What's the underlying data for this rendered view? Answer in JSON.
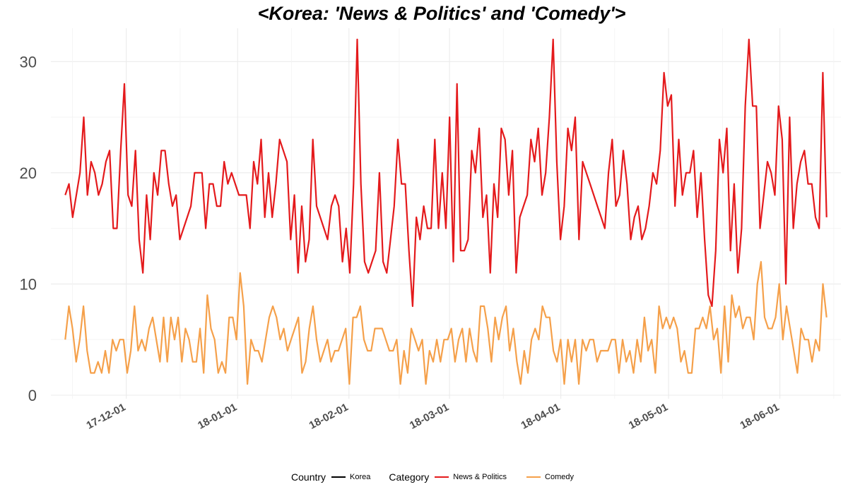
{
  "chart_data": {
    "type": "line",
    "title": "<Korea: 'News & Politics' and 'Comedy'>",
    "xlabel": "",
    "ylabel": "",
    "x_start": "2017-11-14",
    "x_end": "2018-06-14",
    "xlim": [
      "2017-11-10",
      "2018-06-18"
    ],
    "ylim": [
      0,
      33
    ],
    "yticks": [
      0,
      10,
      20,
      30
    ],
    "xtick_labels": [
      {
        "date": "2017-12-01",
        "label": "17-12-01"
      },
      {
        "date": "2018-01-01",
        "label": "18-01-01"
      },
      {
        "date": "2018-02-01",
        "label": "18-02-01"
      },
      {
        "date": "2018-03-01",
        "label": "18-03-01"
      },
      {
        "date": "2018-04-01",
        "label": "18-04-01"
      },
      {
        "date": "2018-05-01",
        "label": "18-05-01"
      },
      {
        "date": "2018-06-01",
        "label": "18-06-01"
      }
    ],
    "grid": true,
    "legend_position": "bottom",
    "series": [
      {
        "name": "News & Politics",
        "color": "#e41a1c",
        "values": [
          18,
          19,
          16,
          18,
          20,
          25,
          18,
          21,
          20,
          18,
          19,
          21,
          22,
          15,
          15,
          22,
          28,
          18,
          17,
          22,
          14,
          11,
          18,
          14,
          20,
          18,
          22,
          22,
          19,
          17,
          18,
          14,
          15,
          16,
          17,
          20,
          20,
          20,
          15,
          19,
          19,
          17,
          17,
          21,
          19,
          20,
          19,
          18,
          18,
          18,
          15,
          21,
          19,
          23,
          16,
          20,
          16,
          19,
          23,
          22,
          21,
          14,
          18,
          11,
          17,
          12,
          14,
          23,
          17,
          16,
          15,
          14,
          17,
          18,
          17,
          12,
          15,
          11,
          19,
          32,
          19,
          12,
          11,
          12,
          13,
          20,
          12,
          11,
          14,
          17,
          23,
          19,
          19,
          13,
          8,
          16,
          14,
          17,
          15,
          15,
          23,
          15,
          20,
          15,
          25,
          12,
          28,
          13,
          13,
          14,
          22,
          20,
          24,
          16,
          18,
          11,
          19,
          16,
          24,
          23,
          18,
          22,
          11,
          16,
          17,
          18,
          23,
          21,
          24,
          18,
          20,
          25,
          32,
          21,
          14,
          17,
          24,
          22,
          25,
          14,
          21,
          20,
          19,
          18,
          17,
          16,
          15,
          20,
          23,
          17,
          18,
          22,
          19,
          14,
          16,
          17,
          14,
          15,
          17,
          20,
          19,
          22,
          29,
          26,
          27,
          17,
          23,
          18,
          20,
          20,
          22,
          16,
          20,
          14,
          9,
          8,
          13,
          23,
          20,
          24,
          13,
          19,
          11,
          15,
          26,
          32,
          26,
          26,
          15,
          18,
          21,
          20,
          18,
          26,
          23,
          10,
          25,
          15,
          19,
          21,
          22,
          19,
          19,
          16,
          15,
          29,
          16
        ]
      },
      {
        "name": "Comedy",
        "color": "#f5a04a",
        "values": [
          5,
          8,
          6,
          3,
          5,
          8,
          4,
          2,
          2,
          3,
          2,
          4,
          2,
          5,
          4,
          5,
          5,
          2,
          4,
          8,
          4,
          5,
          4,
          6,
          7,
          5,
          3,
          7,
          3,
          7,
          5,
          7,
          3,
          6,
          5,
          3,
          3,
          6,
          2,
          9,
          6,
          5,
          2,
          3,
          2,
          7,
          7,
          5,
          11,
          8,
          1,
          5,
          4,
          4,
          3,
          5,
          7,
          8,
          7,
          5,
          6,
          4,
          5,
          6,
          7,
          2,
          3,
          6,
          8,
          5,
          3,
          4,
          5,
          3,
          4,
          4,
          5,
          6,
          1,
          7,
          7,
          8,
          5,
          4,
          4,
          6,
          6,
          6,
          5,
          4,
          4,
          5,
          1,
          4,
          2,
          6,
          5,
          4,
          5,
          1,
          4,
          3,
          5,
          3,
          5,
          5,
          6,
          3,
          5,
          6,
          3,
          6,
          4,
          3,
          8,
          8,
          6,
          3,
          7,
          5,
          7,
          8,
          4,
          6,
          3,
          1,
          4,
          2,
          5,
          6,
          5,
          8,
          7,
          7,
          4,
          3,
          5,
          1,
          5,
          3,
          5,
          1,
          5,
          4,
          5,
          5,
          3,
          4,
          4,
          4,
          5,
          5,
          2,
          5,
          3,
          4,
          2,
          5,
          3,
          7,
          4,
          5,
          2,
          8,
          6,
          7,
          6,
          7,
          6,
          3,
          4,
          2,
          2,
          6,
          6,
          7,
          6,
          8,
          5,
          6,
          2,
          8,
          3,
          9,
          7,
          8,
          6,
          7,
          7,
          5,
          10,
          12,
          7,
          6,
          6,
          7,
          10,
          5,
          8,
          6,
          4,
          2,
          6,
          5,
          5,
          3,
          5,
          4,
          10,
          7
        ]
      }
    ]
  },
  "legend": {
    "country_title": "Country",
    "country_label": "Korea",
    "category_title": "Category",
    "category_labels": [
      "News & Politics",
      "Comedy"
    ],
    "colors": {
      "korea": "#000000",
      "news": "#e41a1c",
      "comedy": "#f5a04a"
    }
  }
}
